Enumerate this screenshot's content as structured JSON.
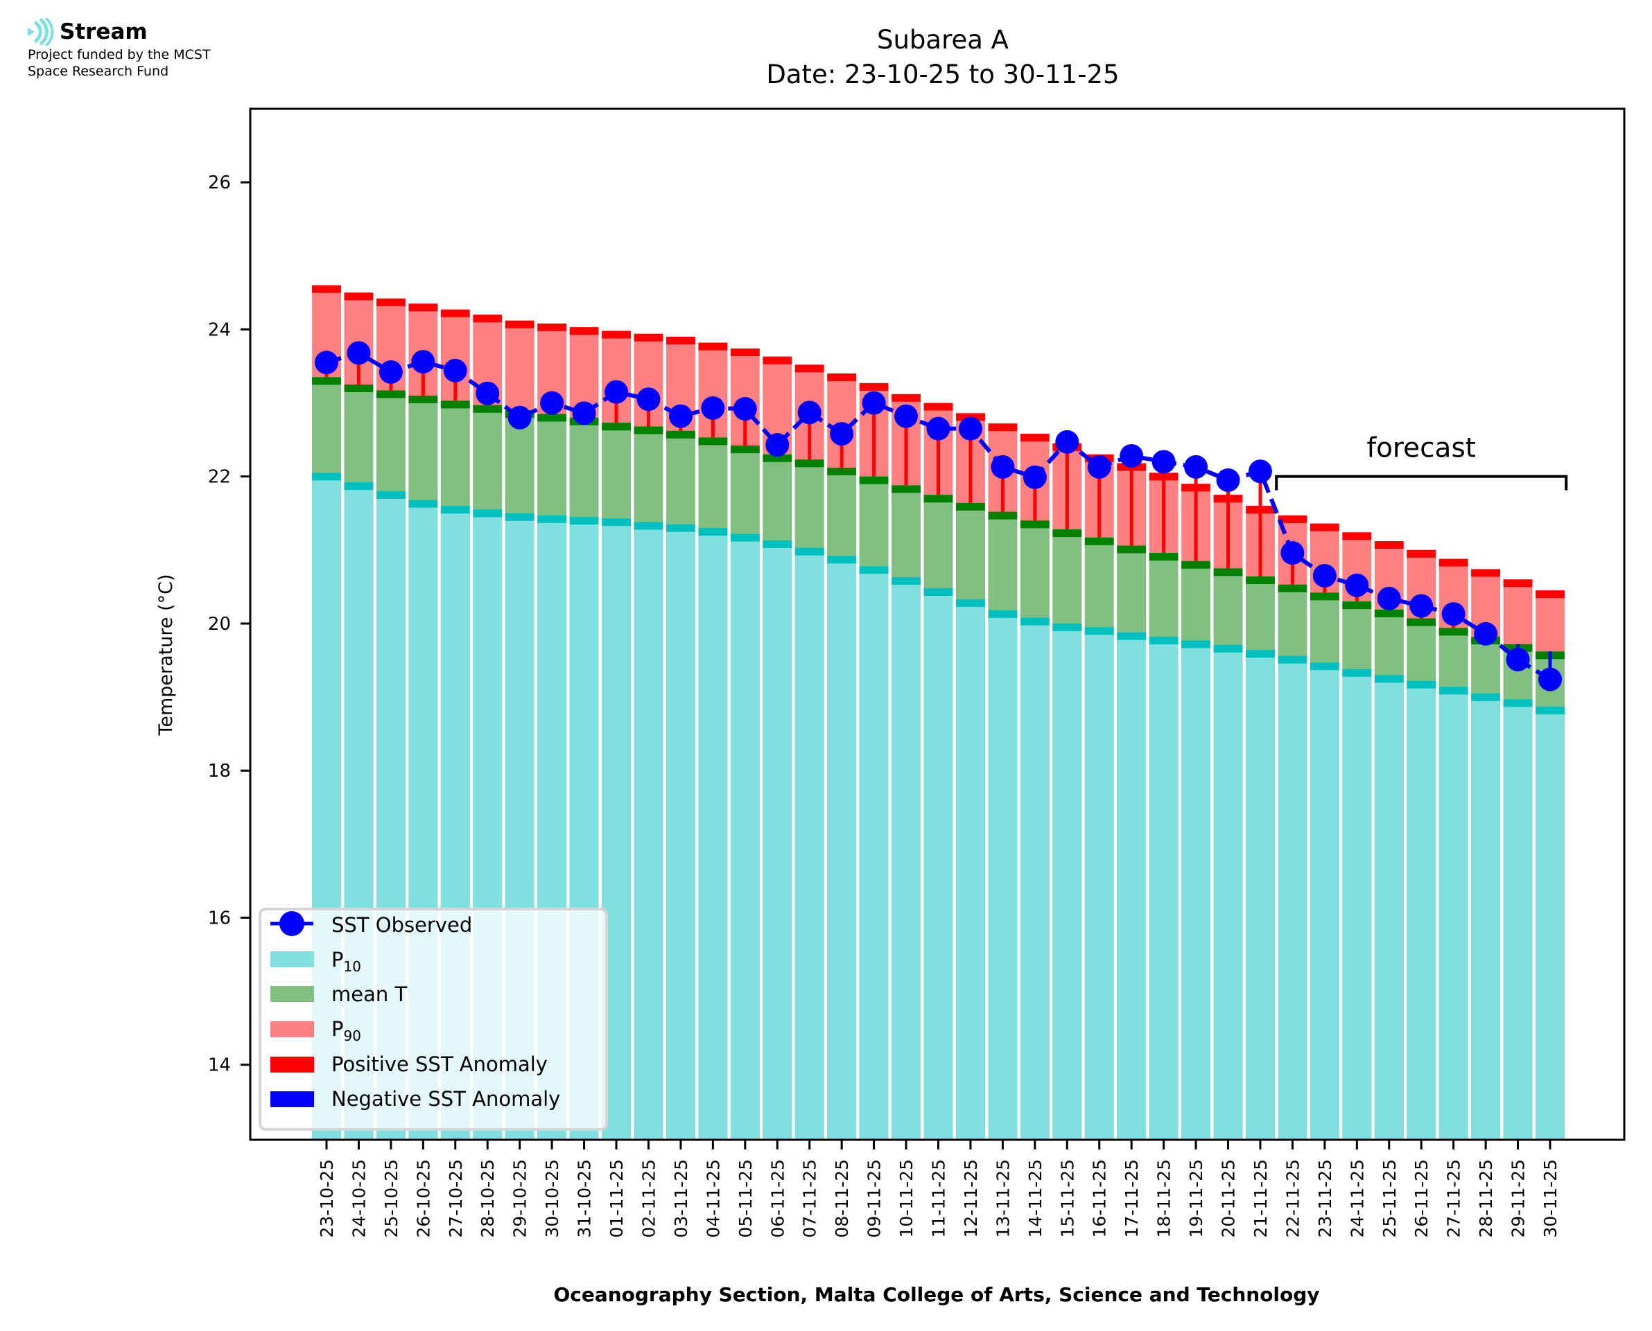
{
  "logo": {
    "name": "Stream",
    "funding_line1": "Project funded by the MCST",
    "funding_line2": "Space Research Fund",
    "icon": "stream-waves-icon"
  },
  "chart_data": {
    "type": "bar",
    "title": "Subarea A",
    "subtitle": "Date: 23-10-25 to 30-11-25",
    "xlabel": "Oceanography Section, Malta College of Arts, Science and Technology",
    "ylabel": "Temperature (°C)",
    "ylim": [
      12.98,
      27.0
    ],
    "yticks": [
      14,
      16,
      18,
      20,
      22,
      24,
      26
    ],
    "grid": false,
    "legend_position": "lower-left",
    "categories": [
      "23-10-25",
      "24-10-25",
      "25-10-25",
      "26-10-25",
      "27-10-25",
      "28-10-25",
      "29-10-25",
      "30-10-25",
      "31-10-25",
      "01-11-25",
      "02-11-25",
      "03-11-25",
      "04-11-25",
      "05-11-25",
      "06-11-25",
      "07-11-25",
      "08-11-25",
      "09-11-25",
      "10-11-25",
      "11-11-25",
      "12-11-25",
      "13-11-25",
      "14-11-25",
      "15-11-25",
      "16-11-25",
      "17-11-25",
      "18-11-25",
      "19-11-25",
      "20-11-25",
      "21-11-25",
      "22-11-25",
      "23-11-25",
      "24-11-25",
      "25-11-25",
      "26-11-25",
      "27-11-25",
      "28-11-25",
      "29-11-25",
      "30-11-25"
    ],
    "series": [
      {
        "name": "P10",
        "label_main": "P",
        "label_sub": "10",
        "color": "#80dfdf",
        "edge_color": "#00bfbf",
        "values": [
          22.05,
          21.92,
          21.8,
          21.68,
          21.6,
          21.55,
          21.5,
          21.47,
          21.45,
          21.43,
          21.38,
          21.35,
          21.3,
          21.22,
          21.13,
          21.03,
          20.92,
          20.78,
          20.63,
          20.48,
          20.33,
          20.18,
          20.08,
          20.0,
          19.95,
          19.88,
          19.82,
          19.77,
          19.71,
          19.64,
          19.56,
          19.47,
          19.38,
          19.3,
          19.22,
          19.14,
          19.05,
          18.97,
          18.87
        ]
      },
      {
        "name": "mean T",
        "label_main": "mean T",
        "label_sub": "",
        "color": "#80c080",
        "edge_color": "#008000",
        "values": [
          23.35,
          23.25,
          23.17,
          23.1,
          23.03,
          22.97,
          22.9,
          22.85,
          22.8,
          22.73,
          22.68,
          22.62,
          22.53,
          22.42,
          22.3,
          22.23,
          22.12,
          22.0,
          21.88,
          21.75,
          21.64,
          21.52,
          21.4,
          21.28,
          21.17,
          21.06,
          20.96,
          20.85,
          20.75,
          20.64,
          20.53,
          20.42,
          20.3,
          20.19,
          20.07,
          19.94,
          19.82,
          19.72,
          19.62
        ]
      },
      {
        "name": "P90",
        "label_main": "P",
        "label_sub": "90",
        "color": "#ff8080",
        "edge_color": "#ff0000",
        "values": [
          24.6,
          24.5,
          24.42,
          24.35,
          24.27,
          24.2,
          24.12,
          24.08,
          24.03,
          23.98,
          23.94,
          23.9,
          23.82,
          23.74,
          23.63,
          23.52,
          23.4,
          23.27,
          23.12,
          23.0,
          22.86,
          22.72,
          22.58,
          22.45,
          22.3,
          22.18,
          22.05,
          21.9,
          21.75,
          21.6,
          21.47,
          21.36,
          21.24,
          21.12,
          21.0,
          20.88,
          20.74,
          20.6,
          20.45
        ]
      },
      {
        "name": "SST Observed",
        "type": "line",
        "color": "#0000ff",
        "values": [
          23.55,
          23.68,
          23.42,
          23.56,
          23.44,
          23.13,
          22.8,
          23.0,
          22.86,
          23.15,
          23.05,
          22.82,
          22.93,
          22.92,
          22.43,
          22.87,
          22.58,
          23.0,
          22.82,
          22.65,
          22.65,
          22.13,
          21.99,
          22.47,
          22.13,
          22.28,
          22.2,
          22.13,
          21.95,
          22.07,
          20.96,
          20.65,
          20.52,
          20.34,
          20.24,
          20.13,
          19.86,
          19.51,
          19.24
        ]
      }
    ],
    "anomaly_legend": [
      {
        "name": "Positive SST Anomaly",
        "color": "#ff0000"
      },
      {
        "name": "Negative SST Anomaly",
        "color": "#0000ff"
      }
    ],
    "observed_days": 30,
    "annotations": [
      {
        "text": "forecast",
        "from_category": "22-11-25",
        "to_category": "30-11-25",
        "value": 22.0
      }
    ]
  }
}
